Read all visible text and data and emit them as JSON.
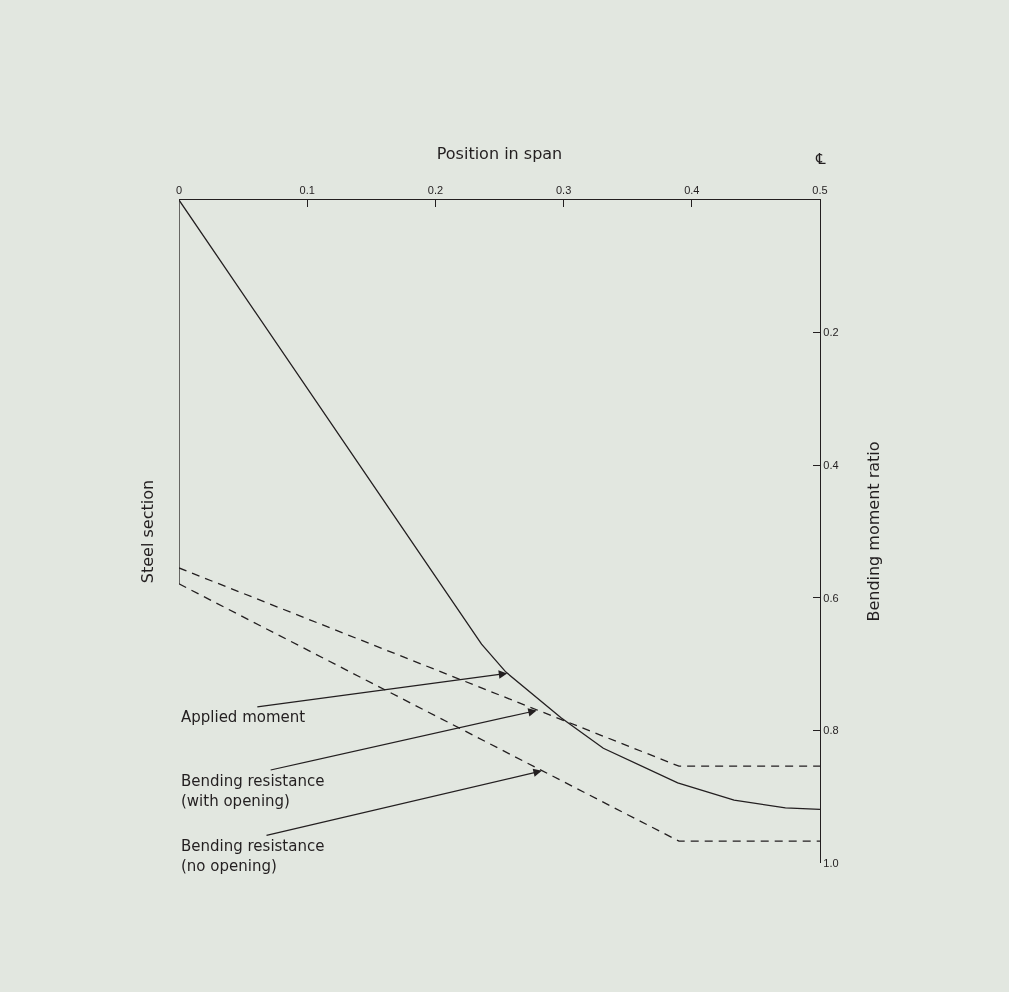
{
  "chart_data": {
    "type": "line",
    "xlabel": "Position in span",
    "ylabel": "Bending moment ratio",
    "y2label": "Steel section",
    "xlim": [
      0,
      0.5
    ],
    "xticks": [
      0,
      0.1,
      0.2,
      0.3,
      0.4,
      0.5
    ],
    "ylim": [
      1.0,
      0
    ],
    "yticks": [
      0.2,
      0.4,
      0.6,
      0.8,
      {
        "value": 1,
        "label": "1.0"
      }
    ],
    "grid": false,
    "marker": "none",
    "series": [
      {
        "color": "#231f20",
        "line_style": "solid",
        "x": [
          0,
          0.236,
          0.255,
          0.298,
          0.331,
          0.389,
          0.433,
          0.473,
          0.5
        ],
        "values": [
          0,
          0.67,
          0.712,
          0.781,
          0.827,
          0.879,
          0.905,
          0.917,
          0.919
        ]
      },
      {
        "color": "#231f20",
        "line_style": "dashed",
        "x": [
          0,
          0.39,
          0.5
        ],
        "values": [
          0.555,
          0.854,
          0.854
        ]
      },
      {
        "color": "#231f20",
        "line_style": "dashed",
        "x": [
          0,
          0.39,
          0.5
        ],
        "values": [
          0.579,
          0.967,
          0.967
        ]
      }
    ],
    "annotations": [
      "℄",
      {
        "text": "Applied moment",
        "x": 0.256,
        "y": 0.714
      },
      {
        "text": "Bending resistance\n(with opening)",
        "x": 0.279,
        "y": 0.77
      },
      {
        "text": "Bending resistance\n(no opening)",
        "x": 0.283,
        "y": 0.861
      }
    ]
  }
}
